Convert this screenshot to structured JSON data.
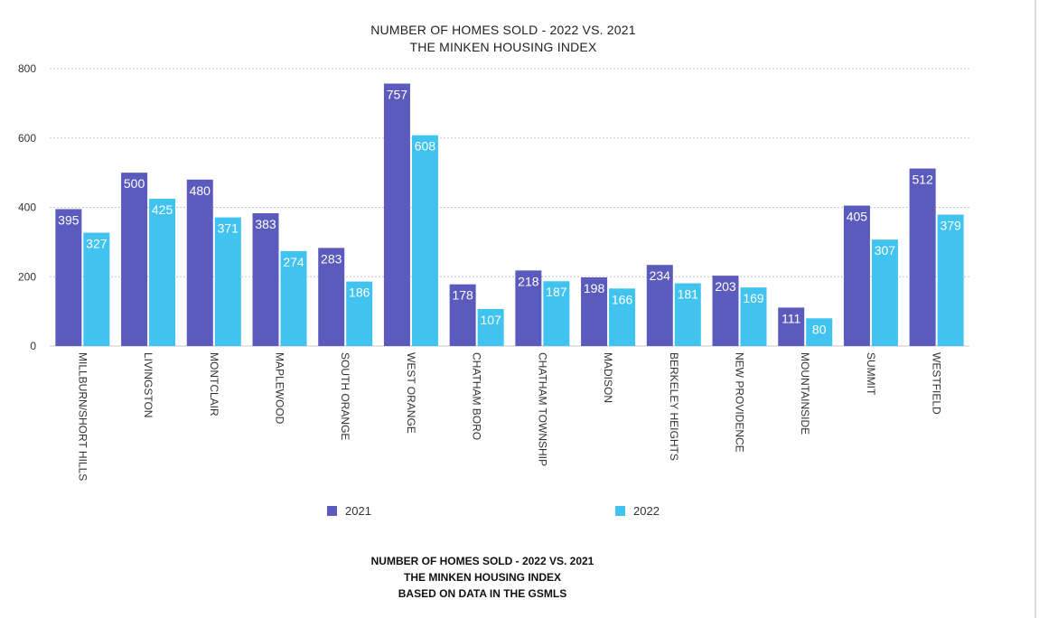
{
  "chart_data": {
    "type": "bar",
    "title_lines": [
      "NUMBER OF HOMES SOLD - 2022 VS. 2021",
      "THE MINKEN HOUSING INDEX"
    ],
    "categories": [
      "MILLBURN/SHORT HILLS",
      "LIVINGSTON",
      "MONTCLAIR",
      "MAPLEWOOD",
      "SOUTH ORANGE",
      "WEST ORANGE",
      "CHATHAM BORO",
      "CHATHAM TOWNSHIP",
      "MADISON",
      "BERKELEY HEIGHTS",
      "NEW PROVIDENCE",
      "MOUNTAINSIDE",
      "SUMMIT",
      "WESTFIELD"
    ],
    "series": [
      {
        "name": "2021",
        "color": "#5b5bbd",
        "values": [
          395,
          500,
          480,
          383,
          283,
          757,
          178,
          218,
          198,
          234,
          203,
          111,
          405,
          512
        ]
      },
      {
        "name": "2022",
        "color": "#41c3f0",
        "values": [
          327,
          425,
          371,
          274,
          186,
          608,
          107,
          187,
          166,
          181,
          169,
          80,
          307,
          379
        ]
      }
    ],
    "ylim": [
      0,
      800
    ],
    "yticks": [
      "0",
      "200",
      "400",
      "600",
      "800"
    ],
    "grid": true,
    "legend_position": "bottom"
  },
  "caption": {
    "line1": "NUMBER OF HOMES SOLD - 2022 VS. 2021",
    "line2": "THE MINKEN HOUSING INDEX",
    "line3": "BASED ON DATA IN THE GSMLS"
  }
}
